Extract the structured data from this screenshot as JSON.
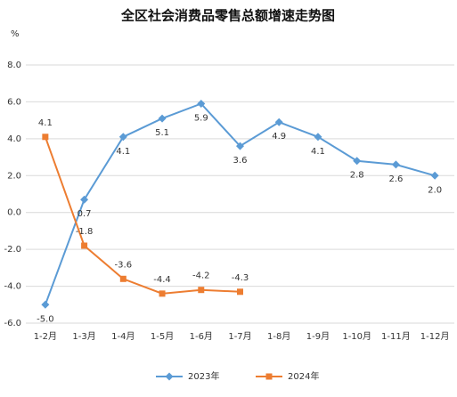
{
  "chart_data": {
    "type": "line",
    "title": "全区社会消费品零售总额增速走势图",
    "y_unit": "%",
    "categories": [
      "1-2月",
      "1-3月",
      "1-4月",
      "1-5月",
      "1-6月",
      "1-7月",
      "1-8月",
      "1-9月",
      "1-10月",
      "1-11月",
      "1-12月"
    ],
    "series": [
      {
        "name": "2023年",
        "color": "#5b9bd5",
        "marker": "diamond",
        "values": [
          -5.0,
          0.7,
          4.1,
          5.1,
          5.9,
          3.6,
          4.9,
          4.1,
          2.8,
          2.6,
          2.0
        ],
        "value_labels": [
          "-5.0",
          "0.7",
          "4.1",
          "5.1",
          "5.9",
          "3.6",
          "4.9",
          "4.1",
          "2.8",
          "2.6",
          "2.0"
        ]
      },
      {
        "name": "2024年",
        "color": "#ed7d31",
        "marker": "square",
        "values": [
          4.1,
          -1.8,
          -3.6,
          -4.4,
          -4.2,
          -4.3,
          null,
          null,
          null,
          null,
          null
        ],
        "value_labels": [
          "4.1",
          "-1.8",
          "-3.6",
          "-4.4",
          "-4.2",
          "-4.3",
          null,
          null,
          null,
          null,
          null
        ]
      }
    ],
    "ylim": [
      -6,
      8
    ],
    "yticks": [
      {
        "value": -6,
        "label": "-6.0"
      },
      {
        "value": -4,
        "label": "-4.0"
      },
      {
        "value": -2,
        "label": "-2.0"
      },
      {
        "value": 0,
        "label": "0.0"
      },
      {
        "value": 2,
        "label": "2.0"
      },
      {
        "value": 4,
        "label": "4.0"
      },
      {
        "value": 6,
        "label": "6.0"
      },
      {
        "value": 8,
        "label": "8.0"
      }
    ],
    "grid": true,
    "legend": "bottom"
  }
}
